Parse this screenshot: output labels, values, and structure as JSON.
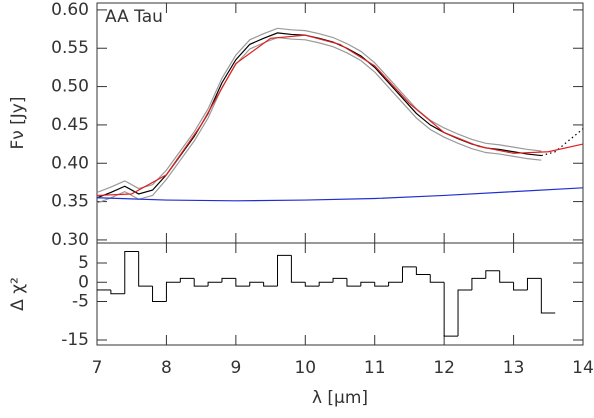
{
  "chart_data": [
    {
      "type": "line",
      "annotation": "AA Tau",
      "ylabel": "Fν [Jy]",
      "xlim": [
        7,
        14
      ],
      "xticks": [
        7,
        8,
        9,
        10,
        11,
        12,
        13,
        14
      ],
      "ylim": [
        0.296,
        0.609
      ],
      "yticks": [
        {
          "value": 0.3,
          "label": "0.30"
        },
        0.35,
        {
          "value": 0.4,
          "label": "0.40"
        },
        0.45,
        {
          "value": 0.5,
          "label": "0.50"
        },
        0.55,
        {
          "value": 0.6,
          "label": "0.60"
        }
      ],
      "series": [
        {
          "color": "#9a9a9a",
          "x": [
            7.0,
            7.2,
            7.4,
            7.6,
            7.8,
            8.0,
            8.2,
            8.4,
            8.6,
            8.8,
            9.0,
            9.2,
            9.4,
            9.6,
            9.8,
            10.0,
            10.2,
            10.4,
            10.6,
            10.8,
            11.0,
            11.2,
            11.4,
            11.6,
            11.8,
            12.0,
            12.2,
            12.4,
            12.6,
            12.8,
            13.0,
            13.2,
            13.4
          ],
          "values": [
            0.362,
            0.369,
            0.377,
            0.367,
            0.372,
            0.391,
            0.416,
            0.441,
            0.471,
            0.511,
            0.541,
            0.561,
            0.569,
            0.576,
            0.574,
            0.573,
            0.569,
            0.564,
            0.556,
            0.546,
            0.531,
            0.511,
            0.491,
            0.471,
            0.456,
            0.446,
            0.438,
            0.431,
            0.426,
            0.424,
            0.421,
            0.418,
            0.416
          ]
        },
        {
          "color": "#9a9a9a",
          "x": [
            7.0,
            7.2,
            7.4,
            7.6,
            7.8,
            8.0,
            8.2,
            8.4,
            8.6,
            8.8,
            9.0,
            9.2,
            9.4,
            9.6,
            9.8,
            10.0,
            10.2,
            10.4,
            10.6,
            10.8,
            11.0,
            11.2,
            11.4,
            11.6,
            11.8,
            12.0,
            12.2,
            12.4,
            12.6,
            12.8,
            13.0,
            13.2,
            13.4
          ],
          "values": [
            0.348,
            0.355,
            0.363,
            0.353,
            0.358,
            0.379,
            0.404,
            0.429,
            0.459,
            0.499,
            0.529,
            0.549,
            0.557,
            0.564,
            0.562,
            0.561,
            0.557,
            0.552,
            0.544,
            0.534,
            0.519,
            0.499,
            0.479,
            0.459,
            0.444,
            0.434,
            0.426,
            0.419,
            0.414,
            0.412,
            0.409,
            0.406,
            0.404
          ]
        },
        {
          "color": "#000000",
          "x": [
            7.0,
            7.2,
            7.4,
            7.6,
            7.8,
            8.0,
            8.2,
            8.4,
            8.6,
            8.8,
            9.0,
            9.2,
            9.4,
            9.6,
            9.8,
            10.0,
            10.2,
            10.4,
            10.6,
            10.8,
            11.0,
            11.2,
            11.4,
            11.6,
            11.8,
            12.0,
            12.2,
            12.4,
            12.6,
            12.8,
            13.0,
            13.2,
            13.4
          ],
          "values": [
            0.355,
            0.362,
            0.37,
            0.36,
            0.365,
            0.385,
            0.41,
            0.435,
            0.465,
            0.505,
            0.535,
            0.555,
            0.563,
            0.57,
            0.568,
            0.567,
            0.563,
            0.558,
            0.55,
            0.54,
            0.525,
            0.505,
            0.485,
            0.465,
            0.45,
            0.44,
            0.432,
            0.425,
            0.42,
            0.418,
            0.415,
            0.412,
            0.41
          ]
        },
        {
          "color": "#000000",
          "style": "dotted",
          "x": [
            13.4,
            13.6,
            13.8,
            14.0
          ],
          "values": [
            0.41,
            0.415,
            0.43,
            0.445
          ]
        },
        {
          "color": "#e02020",
          "x": [
            7,
            7.5,
            8,
            8.5,
            9,
            9.5,
            10,
            10.5,
            11,
            11.5,
            12,
            12.5,
            13,
            13.5,
            14
          ],
          "values": [
            0.358,
            0.36,
            0.385,
            0.45,
            0.53,
            0.563,
            0.567,
            0.555,
            0.527,
            0.478,
            0.44,
            0.422,
            0.413,
            0.415,
            0.425
          ]
        },
        {
          "color": "#2030d0",
          "x": [
            7,
            8,
            9,
            10,
            11,
            12,
            13,
            14
          ],
          "values": [
            0.355,
            0.352,
            0.351,
            0.352,
            0.354,
            0.358,
            0.363,
            0.368
          ]
        }
      ]
    },
    {
      "type": "step",
      "ylabel": "Δ χ²",
      "xlabel": "λ [μm]",
      "xlim": [
        7,
        14
      ],
      "xticks": [
        7,
        8,
        9,
        10,
        11,
        12,
        13,
        14
      ],
      "ylim": [
        -16.3,
        10.2
      ],
      "yticks": [
        5,
        0,
        -5,
        -15
      ],
      "color": "#000000",
      "step": 0.2,
      "x": [
        7.0,
        7.2,
        7.4,
        7.6,
        7.8,
        8.0,
        8.2,
        8.4,
        8.6,
        8.8,
        9.0,
        9.2,
        9.4,
        9.6,
        9.8,
        10.0,
        10.2,
        10.4,
        10.6,
        10.8,
        11.0,
        11.2,
        11.4,
        11.6,
        11.8,
        12.0,
        12.2,
        12.4,
        12.6,
        12.8,
        13.0,
        13.2,
        13.4
      ],
      "values": [
        -2,
        -3,
        8,
        -1,
        -5,
        0,
        1,
        -1,
        0,
        1,
        -1,
        0,
        -1,
        7,
        0,
        -1,
        0,
        1,
        -1,
        0,
        -1,
        0,
        4,
        2,
        0,
        -14,
        -2,
        1,
        3,
        0,
        -2,
        1,
        -8
      ]
    }
  ]
}
